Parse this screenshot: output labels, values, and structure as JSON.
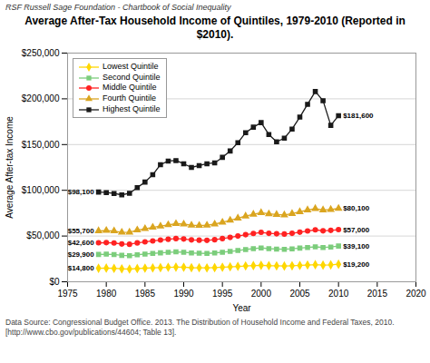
{
  "chart_data": {
    "type": "line",
    "title": "Average After-Tax Household Income of Quintiles, 1979-2010 (Reported in $2010).",
    "subtitle": "RSF  Russell Sage Foundation - Chartbook of Social Inequality",
    "caption": "Data Source: Congressional Budget Office. 2013. The Distribution of Household Income and Federal Taxes, 2010. [http://www.cbo.gov/publications/44604; Table 13].",
    "xlabel": "Year",
    "ylabel": "Average After-tax Income",
    "x": [
      1979,
      1980,
      1981,
      1982,
      1983,
      1984,
      1985,
      1986,
      1987,
      1988,
      1989,
      1990,
      1991,
      1992,
      1993,
      1994,
      1995,
      1996,
      1997,
      1998,
      1999,
      2000,
      2001,
      2002,
      2003,
      2004,
      2005,
      2006,
      2007,
      2008,
      2009,
      2010
    ],
    "series": [
      {
        "name": "Lowest Quintile",
        "color": "#FFD700",
        "marker": "diamond",
        "values": [
          14800,
          15000,
          14700,
          14200,
          13900,
          14500,
          14900,
          15200,
          15500,
          15800,
          16000,
          15900,
          15400,
          15300,
          15200,
          15500,
          15900,
          16300,
          16800,
          17300,
          17700,
          18000,
          17600,
          17400,
          17200,
          17500,
          17900,
          18300,
          18700,
          18200,
          18500,
          19200
        ]
      },
      {
        "name": "Second Quintile",
        "color": "#7CCD7C",
        "marker": "square",
        "values": [
          29900,
          30200,
          29800,
          28900,
          28500,
          29500,
          30300,
          31000,
          31600,
          32200,
          32700,
          32300,
          31500,
          31200,
          31000,
          31500,
          32300,
          33200,
          34200,
          35300,
          36200,
          37000,
          36200,
          35800,
          35500,
          36000,
          36800,
          37500,
          38200,
          37500,
          38000,
          39100
        ]
      },
      {
        "name": "Middle Quintile",
        "color": "#FF2222",
        "marker": "circle",
        "values": [
          42600,
          42800,
          42400,
          41300,
          41000,
          42500,
          43600,
          44700,
          45600,
          46500,
          47200,
          46800,
          45800,
          45500,
          45300,
          46000,
          47200,
          48500,
          50000,
          51500,
          52800,
          54000,
          53000,
          52500,
          52200,
          53000,
          54200,
          55500,
          56800,
          55700,
          56200,
          57000
        ]
      },
      {
        "name": "Fourth Quintile",
        "color": "#DAA520",
        "marker": "triangle",
        "values": [
          55700,
          56000,
          55500,
          54000,
          54200,
          56500,
          58000,
          59500,
          60800,
          62200,
          63500,
          63000,
          61800,
          61500,
          61800,
          63000,
          65000,
          67200,
          69500,
          71800,
          73800,
          75500,
          74200,
          73500,
          73000,
          74500,
          76500,
          78500,
          80000,
          78500,
          79000,
          80100
        ]
      },
      {
        "name": "Highest Quintile",
        "color": "#1A1A1A",
        "marker": "square",
        "values": [
          98100,
          97500,
          96500,
          95000,
          96800,
          103000,
          109000,
          117000,
          128000,
          132000,
          132500,
          129000,
          125000,
          127000,
          129000,
          130000,
          136000,
          143000,
          152000,
          163000,
          169000,
          174000,
          161000,
          153000,
          157000,
          167000,
          180000,
          194000,
          208000,
          198000,
          171000,
          181600
        ]
      }
    ],
    "annotations": [
      {
        "x": 1979,
        "y": 14800,
        "text": "$14,800"
      },
      {
        "x": 1979,
        "y": 29900,
        "text": "$29,900"
      },
      {
        "x": 1979,
        "y": 42600,
        "text": "$42,600"
      },
      {
        "x": 1979,
        "y": 55700,
        "text": "$55,700"
      },
      {
        "x": 1979,
        "y": 98100,
        "text": "$98,100"
      },
      {
        "x": 2010,
        "y": 19200,
        "text": "$19,200"
      },
      {
        "x": 2010,
        "y": 39100,
        "text": "$39,100"
      },
      {
        "x": 2010,
        "y": 57000,
        "text": "$57,000"
      },
      {
        "x": 2010,
        "y": 80100,
        "text": "$80,100"
      },
      {
        "x": 2010,
        "y": 181600,
        "text": "$181,600"
      }
    ],
    "xlim": [
      1975,
      2020
    ],
    "xticks": [
      1975,
      1980,
      1985,
      1990,
      1995,
      2000,
      2005,
      2010,
      2015,
      2020
    ],
    "ylim": [
      0,
      250000
    ],
    "yticks": [
      {
        "value": 0,
        "label": "$0"
      },
      {
        "value": 50000,
        "label": "$50,000"
      },
      {
        "value": 100000,
        "label": "$100,000"
      },
      {
        "value": 150000,
        "label": "$150,000"
      },
      {
        "value": 200000,
        "label": "$200,000"
      },
      {
        "value": 250000,
        "label": "$250,000"
      }
    ],
    "grid": true,
    "legend": "upper left"
  }
}
